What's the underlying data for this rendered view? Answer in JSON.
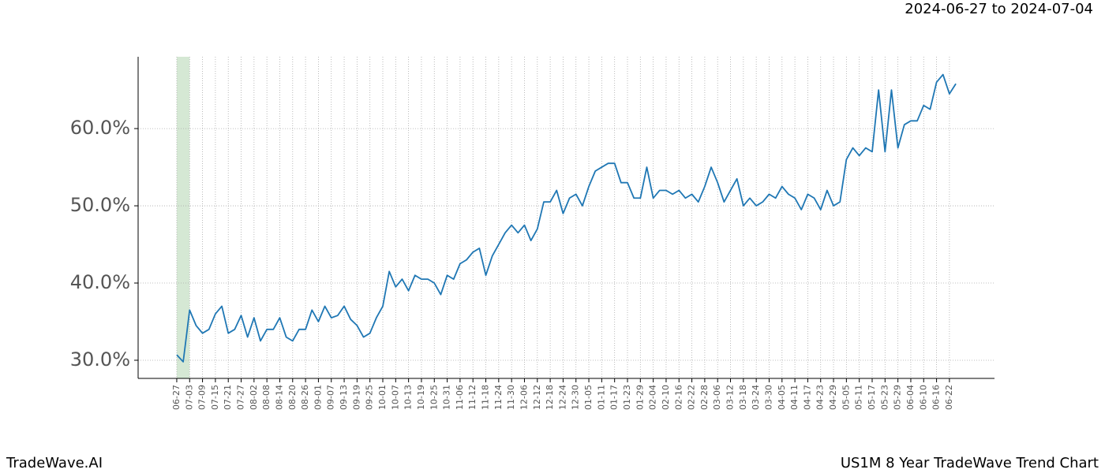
{
  "chart_data": {
    "type": "line",
    "title": "2024-06-27 to 2024-07-04",
    "footer_left": "TradeWave.AI",
    "footer_right": "US1M 8 Year TradeWave Trend Chart",
    "x": [
      "06-27",
      null,
      "07-03",
      null,
      "07-09",
      null,
      "07-15",
      null,
      "07-21",
      null,
      "07-27",
      null,
      "08-02",
      null,
      "08-08",
      null,
      "08-14",
      null,
      "08-20",
      null,
      "08-26",
      null,
      "09-01",
      null,
      "09-07",
      null,
      "09-13",
      null,
      "09-19",
      null,
      "09-25",
      null,
      "10-01",
      null,
      "10-07",
      null,
      "10-13",
      null,
      "10-19",
      null,
      "10-25",
      null,
      "10-31",
      null,
      "11-06",
      null,
      "11-12",
      null,
      "11-18",
      null,
      "11-24",
      null,
      "11-30",
      null,
      "12-06",
      null,
      "12-12",
      null,
      "12-18",
      null,
      "12-24",
      null,
      "12-30",
      null,
      "01-05",
      null,
      "01-11",
      null,
      "01-17",
      null,
      "01-23",
      null,
      "01-29",
      null,
      "02-04",
      null,
      "02-10",
      null,
      "02-16",
      null,
      "02-22",
      null,
      "02-28",
      null,
      "03-06",
      null,
      "03-12",
      null,
      "03-18",
      null,
      "03-24",
      null,
      "03-30",
      null,
      "04-05",
      null,
      "04-11",
      null,
      "04-17",
      null,
      "04-23",
      null,
      "04-29",
      null,
      "05-05",
      null,
      "05-11",
      null,
      "05-17",
      null,
      "05-23",
      null,
      "05-29",
      null,
      "06-04",
      null,
      "06-10",
      null,
      "06-16",
      null,
      "06-22",
      null
    ],
    "series": [
      {
        "color": "#1f77b4",
        "values": [
          30.7,
          29.8,
          36.5,
          34.5,
          33.5,
          34.0,
          36.0,
          37.0,
          33.5,
          34.0,
          35.8,
          33.0,
          35.5,
          32.5,
          34.0,
          34.0,
          35.5,
          33.0,
          32.5,
          34.0,
          34.0,
          36.5,
          35.0,
          37.0,
          35.5,
          35.8,
          37.0,
          35.3,
          34.5,
          33.0,
          33.5,
          35.5,
          37.0,
          41.5,
          39.5,
          40.5,
          39.0,
          41.0,
          40.5,
          40.5,
          40.0,
          38.5,
          41.0,
          40.5,
          42.5,
          43.0,
          44.0,
          44.5,
          41.0,
          43.5,
          45.0,
          46.5,
          47.5,
          46.5,
          47.5,
          45.5,
          47.0,
          50.5,
          50.5,
          52.0,
          49.0,
          51.0,
          51.5,
          50.0,
          52.5,
          54.5,
          55.0,
          55.5,
          55.5,
          53.0,
          53.0,
          51.0,
          51.0,
          55.0,
          51.0,
          52.0,
          52.0,
          51.5,
          52.0,
          51.0,
          51.5,
          50.5,
          52.5,
          55.0,
          53.0,
          50.5,
          52.0,
          53.5,
          50.0,
          51.0,
          50.0,
          50.5,
          51.5,
          51.0,
          52.5,
          51.5,
          51.0,
          49.5,
          51.5,
          51.0,
          49.5,
          52.0,
          50.0,
          50.5,
          56.0,
          57.5,
          56.5,
          57.5,
          57.0,
          65.0,
          57.0,
          65.0,
          57.5,
          60.5,
          61.0,
          61.0,
          63.0,
          62.5,
          66.0,
          67.0,
          64.5,
          65.8
        ]
      }
    ],
    "highlight": [
      "06-27",
      "07-03"
    ],
    "highlight_color": "#d5e8d4",
    "ylim": [
      27.65,
      69.3
    ],
    "yticks": [
      {
        "value": 30,
        "label": "30.0%"
      },
      {
        "value": 40,
        "label": "40.0%"
      },
      {
        "value": 50,
        "label": "50.0%"
      },
      {
        "value": 60,
        "label": "60.0%"
      }
    ],
    "grid": true
  }
}
